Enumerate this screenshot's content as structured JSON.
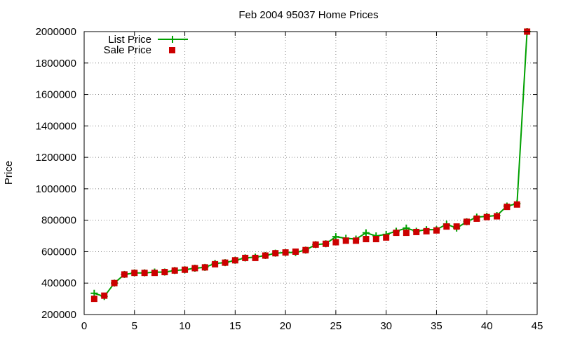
{
  "chart_data": {
    "type": "line",
    "title": "Feb 2004 95037 Home Prices",
    "ylabel": "Price",
    "xlim": [
      0,
      45
    ],
    "ylim": [
      200000,
      2000000
    ],
    "x_ticks": [
      0,
      5,
      10,
      15,
      20,
      25,
      30,
      35,
      40,
      45
    ],
    "y_ticks": [
      200000,
      400000,
      600000,
      800000,
      1000000,
      1200000,
      1400000,
      1600000,
      1800000,
      2000000
    ],
    "grid": true,
    "legend_position": "top-left",
    "x": [
      1,
      2,
      3,
      4,
      5,
      6,
      7,
      8,
      9,
      10,
      11,
      12,
      13,
      14,
      15,
      16,
      17,
      18,
      19,
      20,
      21,
      22,
      23,
      24,
      25,
      26,
      27,
      28,
      29,
      30,
      31,
      32,
      33,
      34,
      35,
      36,
      37,
      38,
      39,
      40,
      41,
      42,
      43,
      44
    ],
    "series": [
      {
        "name": "List Price",
        "style": "line+cross",
        "color": "#00a000",
        "values": [
          335000,
          315000,
          400000,
          455000,
          465000,
          465000,
          470000,
          470000,
          480000,
          485000,
          495000,
          500000,
          525000,
          530000,
          545000,
          560000,
          565000,
          575000,
          590000,
          595000,
          595000,
          610000,
          645000,
          650000,
          695000,
          685000,
          680000,
          720000,
          700000,
          710000,
          730000,
          750000,
          730000,
          740000,
          740000,
          775000,
          750000,
          790000,
          820000,
          825000,
          830000,
          890000,
          905000,
          2000000
        ]
      },
      {
        "name": "Sale Price",
        "style": "square-markers",
        "color": "#cc0000",
        "values": [
          300000,
          320000,
          400000,
          455000,
          465000,
          465000,
          465000,
          470000,
          480000,
          485000,
          495000,
          500000,
          520000,
          530000,
          545000,
          560000,
          560000,
          575000,
          590000,
          595000,
          600000,
          610000,
          645000,
          650000,
          660000,
          670000,
          670000,
          680000,
          680000,
          690000,
          720000,
          720000,
          725000,
          730000,
          735000,
          760000,
          760000,
          790000,
          810000,
          820000,
          825000,
          885000,
          900000,
          2000000
        ]
      }
    ]
  }
}
